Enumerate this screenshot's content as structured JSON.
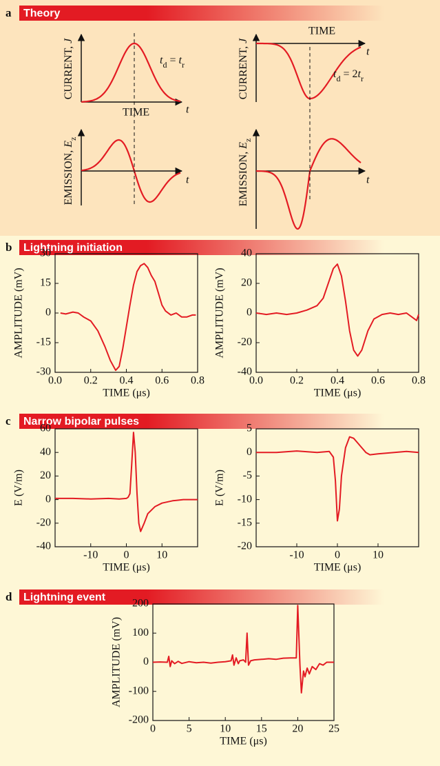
{
  "panels": [
    {
      "label": "a",
      "title": "Theory"
    },
    {
      "label": "b",
      "title": "Lightning initiation"
    },
    {
      "label": "c",
      "title": "Narrow bipolar pulses"
    },
    {
      "label": "d",
      "title": "Lightning event"
    }
  ],
  "theory": {
    "plots": [
      {
        "ylabel_parts": [
          "CURRENT, ",
          "J"
        ],
        "xlabel": "TIME",
        "axis_t": "t",
        "relation_parts": [
          "t",
          "d",
          " = ",
          "t",
          "r"
        ]
      },
      {
        "ylabel_parts": [
          "EMISSION, ",
          "E",
          "z"
        ],
        "axis_t": "t"
      },
      {
        "ylabel_parts": [
          "CURRENT, ",
          "J"
        ],
        "xlabel": "TIME",
        "axis_t": "t",
        "relation_parts": [
          "t",
          "d",
          " = 2",
          "t",
          "r"
        ]
      },
      {
        "ylabel_parts": [
          "EMISSION, ",
          "E",
          "z"
        ],
        "axis_t": "t"
      }
    ]
  },
  "chart_data": [
    {
      "type": "line",
      "ylabel": "AMPLITUDE (mV)",
      "xlabel": "TIME (μs)",
      "color": "#e31b23",
      "x": [
        0.03,
        0.06,
        0.1,
        0.13,
        0.16,
        0.2,
        0.24,
        0.28,
        0.31,
        0.34,
        0.36,
        0.38,
        0.4,
        0.42,
        0.44,
        0.46,
        0.48,
        0.5,
        0.52,
        0.54,
        0.56,
        0.58,
        0.6,
        0.62,
        0.65,
        0.68,
        0.71,
        0.74,
        0.77,
        0.79
      ],
      "values": [
        0,
        -0.5,
        0.5,
        0,
        -2,
        -4,
        -9,
        -17,
        -24,
        -29,
        -27,
        -18,
        -7,
        4,
        14,
        21,
        24,
        25,
        23,
        19,
        16,
        10,
        4,
        1,
        -1,
        0,
        -2,
        -2,
        -1,
        -1
      ],
      "xlim": [
        0,
        0.8
      ],
      "xticks": [
        {
          "value": 0,
          "label": "0.0"
        },
        0.2,
        0.4,
        0.6,
        0.8
      ],
      "ylim": [
        -30,
        30
      ],
      "yticks": [
        30,
        15,
        0,
        -15,
        -30
      ]
    },
    {
      "type": "line",
      "ylabel": "AMPLITUDE (mV)",
      "xlabel": "TIME (μs)",
      "color": "#e31b23",
      "x": [
        0,
        0.05,
        0.1,
        0.15,
        0.2,
        0.25,
        0.3,
        0.33,
        0.36,
        0.38,
        0.4,
        0.42,
        0.44,
        0.46,
        0.48,
        0.5,
        0.52,
        0.55,
        0.58,
        0.62,
        0.66,
        0.7,
        0.74,
        0.77,
        0.79,
        0.8
      ],
      "values": [
        0,
        -1,
        0,
        -1,
        0,
        2,
        5,
        10,
        22,
        30,
        33,
        25,
        8,
        -12,
        -25,
        -29,
        -25,
        -12,
        -4,
        -1,
        0,
        -1,
        0,
        -3,
        -5,
        -1
      ],
      "xlim": [
        0,
        0.8
      ],
      "xticks": [
        {
          "value": 0,
          "label": "0.0"
        },
        0.2,
        0.4,
        0.6,
        0.8
      ],
      "ylim": [
        -40,
        40
      ],
      "yticks": [
        40,
        20,
        0,
        -20,
        -40
      ]
    },
    {
      "type": "line",
      "ylabel": "E (V/m)",
      "xlabel": "TIME (μs)",
      "color": "#e31b23",
      "x": [
        -20,
        -15,
        -10,
        -5,
        -2,
        0,
        0.5,
        1,
        1.5,
        2,
        2.5,
        3,
        3.5,
        4,
        5,
        6,
        8,
        10,
        13,
        16,
        20
      ],
      "values": [
        1,
        1,
        0.5,
        1,
        0.5,
        1,
        2,
        5,
        30,
        57,
        40,
        5,
        -20,
        -27,
        -20,
        -12,
        -6,
        -3,
        -1,
        0,
        0
      ],
      "xlim": [
        -20,
        20
      ],
      "xticks": [
        -10,
        0,
        10
      ],
      "ylim": [
        -40,
        60
      ],
      "yticks": [
        60,
        40,
        20,
        0,
        -20,
        -40
      ]
    },
    {
      "type": "line",
      "ylabel": "E (V/m)",
      "xlabel": "TIME (μs)",
      "color": "#e31b23",
      "x": [
        -20,
        -15,
        -10,
        -5,
        -2,
        -1,
        -0.5,
        0,
        0.5,
        1,
        2,
        3,
        4,
        5,
        6,
        7,
        8,
        10,
        14,
        17,
        20
      ],
      "values": [
        0,
        0,
        0.3,
        0,
        0.2,
        -1,
        -6,
        -14.5,
        -12,
        -5,
        1,
        3.3,
        3,
        2,
        1,
        0,
        -0.5,
        -0.3,
        0,
        0.2,
        0
      ],
      "xlim": [
        -20,
        20
      ],
      "xticks": [
        -10,
        0,
        10
      ],
      "ylim": [
        -20,
        5
      ],
      "yticks": [
        5,
        0,
        -5,
        -10,
        -15,
        -20
      ]
    },
    {
      "type": "line",
      "ylabel": "AMPLITUDE (mV)",
      "xlabel": "TIME (μs)",
      "color": "#e31b23",
      "x": [
        0,
        1,
        2,
        2.2,
        2.4,
        2.6,
        3,
        3.5,
        4,
        5,
        6,
        7,
        8,
        9,
        10,
        10.8,
        11,
        11.2,
        11.5,
        11.8,
        12,
        12.5,
        12.8,
        13,
        13.2,
        13.5,
        14,
        15,
        16,
        17,
        18,
        19,
        19.8,
        20,
        20.3,
        20.5,
        20.8,
        21,
        21.3,
        21.6,
        22,
        22.5,
        23,
        23.5,
        24,
        25
      ],
      "values": [
        0,
        1,
        0,
        20,
        -15,
        5,
        -5,
        3,
        -4,
        2,
        -2,
        0,
        -3,
        0,
        2,
        5,
        25,
        -10,
        15,
        -5,
        5,
        8,
        0,
        100,
        -10,
        5,
        8,
        10,
        12,
        10,
        14,
        15,
        15,
        195,
        -10,
        -105,
        -30,
        -50,
        -20,
        -40,
        -15,
        -25,
        -5,
        -10,
        0,
        0
      ],
      "xlim": [
        0,
        25
      ],
      "xticks": [
        0,
        5,
        10,
        15,
        20,
        25
      ],
      "ylim": [
        -200,
        200
      ],
      "yticks": [
        200,
        100,
        0,
        -100,
        -200
      ]
    }
  ]
}
